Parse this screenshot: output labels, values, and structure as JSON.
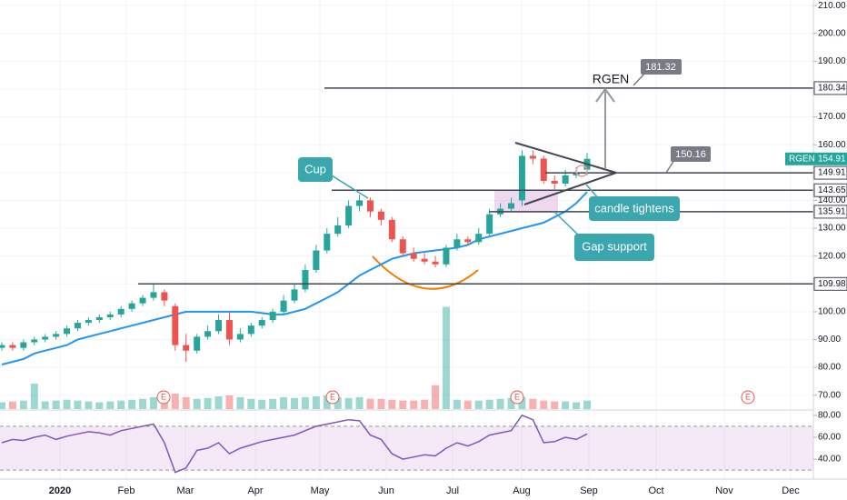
{
  "chart_data": {
    "type": "candlestick",
    "symbol": "RGEN",
    "last_price": 154.91,
    "x_labels": [
      "2020",
      "Feb",
      "Mar",
      "Apr",
      "May",
      "Jun",
      "Jul",
      "Aug",
      "Sep",
      "Oct",
      "Nov",
      "Dec"
    ],
    "open": [
      87,
      88,
      87,
      89,
      90,
      91,
      92,
      94,
      96,
      97,
      98,
      99,
      101,
      103,
      105,
      107,
      102,
      88,
      86,
      91,
      93,
      97,
      90,
      92,
      95,
      97,
      100,
      104,
      108,
      115,
      122,
      128,
      131,
      138,
      140,
      136,
      133,
      126,
      121,
      119,
      118,
      117,
      123,
      126,
      125,
      128,
      135,
      137,
      140,
      156,
      155,
      147,
      146,
      149,
      151
    ],
    "high": [
      89,
      89,
      90,
      91,
      92,
      93,
      95,
      97,
      98,
      99,
      100,
      102,
      104,
      106,
      110,
      108,
      103,
      92,
      92,
      95,
      99,
      100,
      94,
      96,
      98,
      101,
      106,
      110,
      117,
      124,
      130,
      134,
      140,
      142,
      141,
      137,
      134,
      127,
      123,
      121,
      120,
      124,
      128,
      127,
      130,
      137,
      139,
      141,
      158,
      158,
      156,
      149,
      151,
      152,
      157
    ],
    "low": [
      86,
      86,
      86,
      88,
      89,
      90,
      91,
      93,
      95,
      96,
      97,
      98,
      100,
      102,
      104,
      102,
      86,
      82,
      85,
      90,
      92,
      88,
      89,
      91,
      94,
      96,
      99,
      103,
      107,
      114,
      121,
      127,
      130,
      136,
      134,
      131,
      125,
      120,
      118,
      117,
      116,
      116,
      122,
      124,
      124,
      127,
      134,
      136,
      138,
      153,
      146,
      144,
      145,
      148,
      149
    ],
    "close": [
      88,
      87,
      89,
      90,
      91,
      92,
      94,
      96,
      97,
      98,
      99,
      101,
      103,
      105,
      107,
      104,
      88,
      86,
      91,
      93,
      97,
      90,
      92,
      95,
      97,
      100,
      104,
      108,
      115,
      122,
      128,
      131,
      138,
      140,
      136,
      133,
      126,
      121,
      119,
      118,
      117,
      123,
      126,
      125,
      128,
      135,
      137,
      139,
      156,
      155,
      147,
      146,
      149,
      150,
      154.91
    ],
    "up_color": "#26a69a",
    "down_color": "#ef5350",
    "moving_average": {
      "color": "#2196f3",
      "values": [
        81,
        82,
        83,
        85,
        86,
        87,
        88,
        90,
        91,
        92,
        93,
        94,
        95,
        96,
        97,
        98,
        99,
        100,
        100,
        100,
        100,
        100,
        100,
        100,
        99.5,
        99,
        99,
        100,
        101,
        103,
        105,
        107,
        110,
        113,
        115,
        117,
        119,
        120,
        121,
        121.5,
        122,
        122.5,
        123,
        124,
        126,
        127,
        128,
        129,
        130,
        131,
        132,
        134,
        136,
        139,
        143
      ]
    },
    "volume": {
      "ylim": [
        0,
        480
      ],
      "values": [
        8,
        9,
        10,
        30,
        9,
        10,
        11,
        10,
        9,
        8,
        9,
        10,
        11,
        12,
        14,
        16,
        18,
        14,
        12,
        13,
        15,
        16,
        14,
        12,
        11,
        12,
        14,
        13,
        14,
        15,
        16,
        14,
        13,
        14,
        12,
        12,
        11,
        10,
        10,
        11,
        28,
        120,
        11,
        10,
        10,
        11,
        12,
        13,
        14,
        12,
        10,
        9,
        9,
        8,
        10
      ]
    },
    "ylim": [
      65,
      212
    ],
    "yticks": [
      {
        "value": 70,
        "label": "70.00"
      },
      {
        "value": 80,
        "label": "80.00"
      },
      {
        "value": 90,
        "label": "90.00"
      },
      {
        "value": 100,
        "label": "100.00"
      },
      {
        "value": 110,
        "label": "110.00"
      },
      {
        "value": 120,
        "label": "120.00"
      },
      {
        "value": 130,
        "label": "130.00"
      },
      {
        "value": 140,
        "label": "140.00"
      },
      {
        "value": 150,
        "label": "150.00"
      },
      {
        "value": 160,
        "label": "160.00"
      },
      {
        "value": 170,
        "label": "170.00"
      },
      {
        "value": 180,
        "label": "180.00"
      },
      {
        "value": 190,
        "label": "190.00"
      },
      {
        "value": 200,
        "label": "200.00"
      },
      {
        "value": 210,
        "label": "210.00"
      }
    ],
    "levels": [
      180.34,
      149.91,
      143.65,
      135.91,
      109.98
    ],
    "price_targets": [
      181.32,
      150.16
    ],
    "annotations": [
      "Cup",
      "candle tightens",
      "Gap support",
      "RGEN"
    ],
    "earnings": [
      "E",
      "E",
      "E",
      "E"
    ],
    "rsi": {
      "color": "#7e57c2",
      "ylim": [
        26,
        84
      ],
      "band": [
        30,
        70
      ],
      "yticks": [
        {
          "value": 40,
          "label": "40.00"
        },
        {
          "value": 60,
          "label": "60.00"
        },
        {
          "value": 80,
          "label": "80.00"
        }
      ],
      "values": [
        55,
        58,
        57,
        60,
        62,
        58,
        61,
        63,
        65,
        64,
        62,
        66,
        68,
        70,
        72,
        55,
        28,
        32,
        48,
        50,
        55,
        45,
        50,
        53,
        56,
        58,
        60,
        62,
        66,
        70,
        72,
        74,
        76,
        75,
        62,
        58,
        45,
        40,
        42,
        44,
        43,
        50,
        55,
        52,
        56,
        62,
        64,
        66,
        80,
        76,
        55,
        56,
        60,
        58,
        63
      ]
    }
  }
}
